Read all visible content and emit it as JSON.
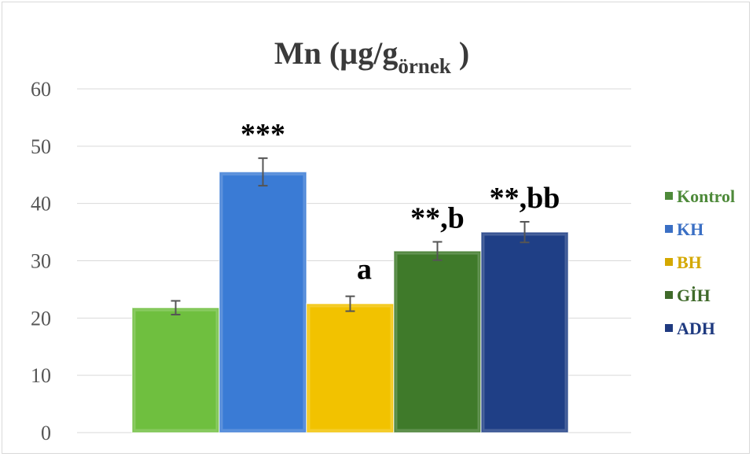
{
  "chart_data": {
    "type": "bar",
    "title_main": "Mn (µg/g",
    "title_sub": "örnek",
    "title_close": " )",
    "categories": [
      "Kontrol",
      "KH",
      "BH",
      "GİH",
      "ADH"
    ],
    "values": [
      21.8,
      45.5,
      22.5,
      31.7,
      35.0
    ],
    "errors": [
      1.2,
      2.4,
      1.3,
      1.6,
      1.8
    ],
    "annotations": [
      "",
      "***",
      "a",
      "**,b",
      "**,bb"
    ],
    "colors": [
      "#6fbf3f",
      "#3a7bd5",
      "#f2c200",
      "#3f7a2a",
      "#1f3f86"
    ],
    "legend_colors": [
      "#4e8a3a",
      "#3a6fc4",
      "#d4a800",
      "#3f6a2a",
      "#1f3a80"
    ],
    "ylim": [
      0,
      60
    ],
    "yticks": [
      0,
      10,
      20,
      30,
      40,
      50,
      60
    ],
    "grid": true,
    "legend_position": "right"
  }
}
